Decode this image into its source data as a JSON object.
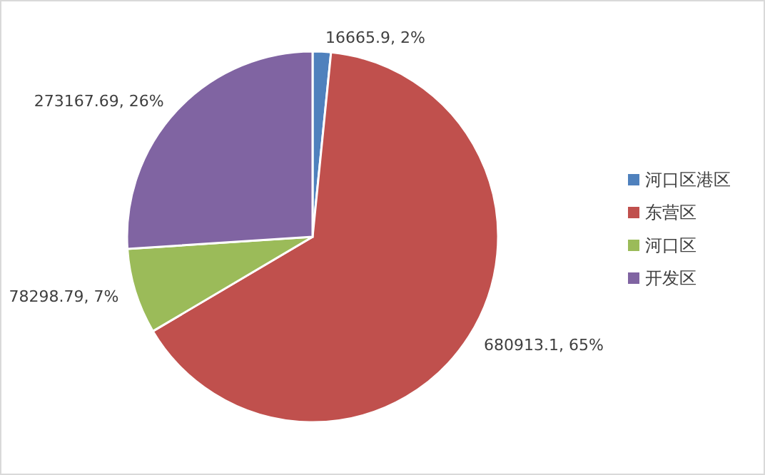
{
  "chart_data": {
    "type": "pie",
    "categories": [
      "河口区港区",
      "东营区",
      "河口区",
      "开发区"
    ],
    "values": [
      16665.9,
      680913.1,
      78298.79,
      273167.69
    ],
    "colors": [
      "#4f81bd",
      "#c0504d",
      "#9bbb59",
      "#8064a2"
    ],
    "value_labels": [
      "16665.9, 2%",
      "680913.1, 65%",
      "78298.79, 7%",
      "273167.69, 26%"
    ],
    "legend": "right"
  }
}
